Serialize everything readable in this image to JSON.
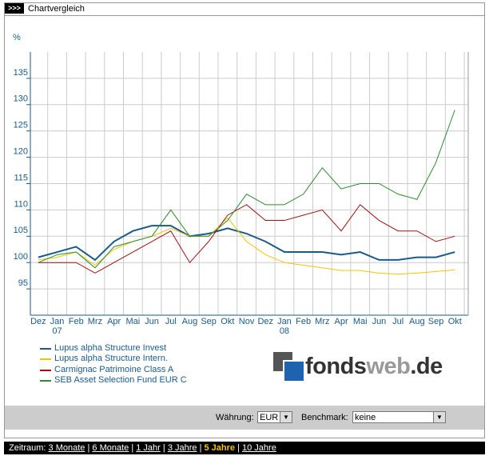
{
  "header": {
    "marker": ">>>",
    "title": "Chartvergleich"
  },
  "chart_data": {
    "type": "line",
    "ylabel": "%",
    "categories": [
      "Dez",
      "Jan\n07",
      "Feb",
      "Mrz",
      "Apr",
      "Mai",
      "Jun",
      "Jul",
      "Aug",
      "Sep",
      "Okt",
      "Nov",
      "Dez",
      "Jan\n08",
      "Feb",
      "Mrz",
      "Apr",
      "Mai",
      "Jun",
      "Jul",
      "Aug",
      "Sep",
      "Okt"
    ],
    "ylim": [
      90,
      140
    ],
    "yticks": [
      95,
      100,
      105,
      110,
      115,
      120,
      125,
      130,
      135
    ],
    "grid": true,
    "series": [
      {
        "name": "Lupus alpha Structure Invest",
        "color": "#1a5a8a",
        "values": [
          101,
          102,
          103,
          100.5,
          104,
          106,
          107,
          107,
          105,
          105.5,
          106.5,
          105.5,
          104,
          102,
          102,
          102,
          101.5,
          102,
          100.5,
          100.5,
          101,
          101,
          102
        ]
      },
      {
        "name": "Lupus alpha Structure Intern.",
        "color": "#f2c400",
        "values": [
          100.5,
          101,
          102,
          99.5,
          102.5,
          104,
          105,
          106.5,
          105,
          105,
          108.5,
          104,
          101.5,
          100,
          99.5,
          99,
          98.5,
          98.5,
          98,
          97.8,
          98,
          98.3,
          98.6
        ]
      },
      {
        "name": "Carmignac Patrimoine Class A",
        "color": "#a01010",
        "values": [
          100,
          100,
          100,
          98,
          100,
          102,
          104,
          106,
          100,
          104,
          109,
          111,
          108,
          108,
          109,
          110,
          106,
          111,
          108,
          106,
          106,
          104,
          105
        ]
      },
      {
        "name": "SEB Asset Selection Fund EUR C",
        "color": "#2e8b2e",
        "values": [
          100,
          101.5,
          102,
          99,
          103,
          104,
          105,
          110,
          105,
          105,
          108,
          113,
          111,
          111,
          113,
          118,
          114,
          115,
          115,
          113,
          112,
          119,
          129
        ]
      }
    ]
  },
  "logo": {
    "parts": [
      "fonds",
      "web",
      ".de"
    ]
  },
  "controls": {
    "currency_label": "Währung:",
    "currency": "EUR",
    "benchmark_label": "Benchmark:",
    "benchmark": "keine"
  },
  "footer": {
    "label": "Zeitraum:",
    "links": [
      "3 Monate",
      "6 Monate",
      "1 Jahr",
      "3 Jahre",
      "5 Jahre",
      "10 Jahre"
    ],
    "active": 4
  }
}
